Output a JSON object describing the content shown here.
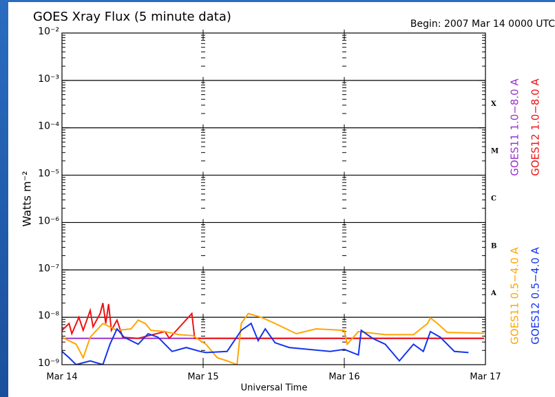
{
  "chart_data": {
    "type": "line",
    "title": "GOES Xray Flux (5 minute data)",
    "subtitle": "Begin:  2007 Mar 14 0000 UTC",
    "x_label": "Universal Time",
    "y_label": "Watts m⁻²",
    "log_y": true,
    "grid": true,
    "xlim": [
      0,
      3
    ],
    "xticks": [
      {
        "value": 0,
        "label": "Mar 14"
      },
      {
        "value": 1,
        "label": "Mar 15"
      },
      {
        "value": 2,
        "label": "Mar 16"
      },
      {
        "value": 3,
        "label": "Mar 17"
      }
    ],
    "ylim": [
      1e-09,
      0.01
    ],
    "yticks": [
      {
        "value": 1e-09,
        "label": "10⁻⁹"
      },
      {
        "value": 1e-08,
        "label": "10⁻⁸"
      },
      {
        "value": 1e-07,
        "label": "10⁻⁷"
      },
      {
        "value": 1e-06,
        "label": "10⁻⁶"
      },
      {
        "value": 1e-05,
        "label": "10⁻⁵"
      },
      {
        "value": 0.0001,
        "label": "10⁻⁴"
      },
      {
        "value": 0.001,
        "label": "10⁻³"
      },
      {
        "value": 0.01,
        "label": "10⁻²"
      }
    ],
    "flare_classes": [
      "A",
      "B",
      "C",
      "M",
      "X"
    ],
    "series": [
      {
        "name": "GOES11 1.0−8.0 A",
        "color": "#9933cc",
        "x": [
          0,
          2.99
        ],
        "values": [
          3.6e-09,
          3.6e-09
        ]
      },
      {
        "name": "GOES12 1.0−8.0 A",
        "color": "#ee1111",
        "x": [
          0,
          0.05,
          0.07,
          0.12,
          0.15,
          0.2,
          0.22,
          0.27,
          0.29,
          0.31,
          0.33,
          0.35,
          0.39,
          0.43,
          0.54,
          0.73,
          0.76,
          0.92,
          0.94,
          2.99
        ],
        "values": [
          5.3e-09,
          7.4e-09,
          4.5e-09,
          1e-08,
          5.3e-09,
          1.4e-08,
          6.3e-09,
          1.2e-08,
          2e-08,
          7.4e-09,
          1.9e-08,
          5.3e-09,
          8.7e-09,
          3.8e-09,
          3.6e-09,
          5e-09,
          3.6e-09,
          1.2e-08,
          3.6e-09,
          3.6e-09
        ]
      },
      {
        "name": "GOES11 0.5−4.0 A",
        "color": "#ffa500",
        "x": [
          0,
          0.1,
          0.15,
          0.2,
          0.29,
          0.39,
          0.49,
          0.54,
          0.59,
          0.63,
          0.73,
          0.83,
          0.93,
          0.98,
          1.02,
          1.1,
          1.17,
          1.24,
          1.27,
          1.32,
          1.41,
          1.51,
          1.66,
          1.8,
          2.0,
          2.02,
          2.1,
          2.29,
          2.49,
          2.59,
          2.61,
          2.66,
          2.73,
          2.99
        ],
        "values": [
          3.8e-09,
          2.7e-09,
          1.4e-09,
          3.8e-09,
          7.4e-09,
          5.3e-09,
          5.7e-09,
          8.7e-09,
          7.4e-09,
          5.3e-09,
          5e-09,
          4.3e-09,
          4.1e-09,
          3.2e-09,
          2.7e-09,
          1.4e-09,
          1.2e-09,
          1e-09,
          7.4e-09,
          1.2e-08,
          1e-08,
          7.4e-09,
          4.5e-09,
          5.7e-09,
          5.3e-09,
          2.7e-09,
          5e-09,
          4.3e-09,
          4.3e-09,
          7.4e-09,
          9.7e-09,
          7.4e-09,
          4.8e-09,
          4.6e-09
        ]
      },
      {
        "name": "GOES12 0.5−4.0 A",
        "color": "#1133ee",
        "x": [
          0,
          0.05,
          0.1,
          0.2,
          0.29,
          0.34,
          0.39,
          0.44,
          0.54,
          0.61,
          0.68,
          0.78,
          0.88,
          0.98,
          1.02,
          1.17,
          1.27,
          1.34,
          1.39,
          1.44,
          1.51,
          1.61,
          1.9,
          2.0,
          2.1,
          2.12,
          2.2,
          2.29,
          2.39,
          2.49,
          2.56,
          2.61,
          2.68,
          2.78,
          2.88
        ],
        "values": [
          1.9e-09,
          1.4e-09,
          1e-09,
          1.2e-09,
          1e-09,
          2.7e-09,
          5.7e-09,
          3.8e-09,
          2.7e-09,
          4.5e-09,
          3.8e-09,
          1.9e-09,
          2.3e-09,
          1.9e-09,
          1.8e-09,
          1.9e-09,
          5.3e-09,
          7.4e-09,
          3.2e-09,
          5.7e-09,
          2.9e-09,
          2.3e-09,
          1.9e-09,
          2.1e-09,
          1.6e-09,
          5.3e-09,
          3.6e-09,
          2.7e-09,
          1.2e-09,
          2.7e-09,
          1.9e-09,
          5e-09,
          3.8e-09,
          1.9e-09,
          1.8e-09
        ]
      }
    ]
  }
}
